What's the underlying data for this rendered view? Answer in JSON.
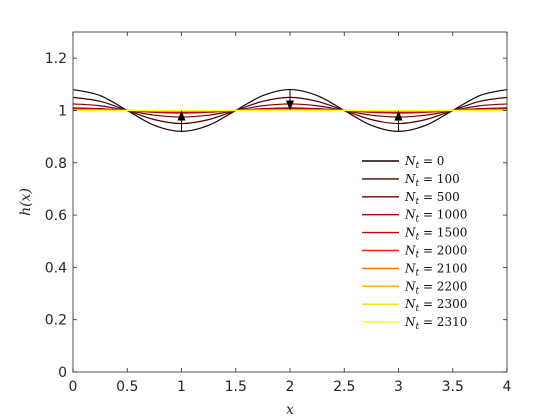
{
  "chart_data": {
    "type": "line",
    "xlabel": "x",
    "ylabel": "h(x)",
    "xlim": [
      0,
      4
    ],
    "ylim": [
      0,
      1.3
    ],
    "xticks": [
      "0",
      "0.5",
      "1",
      "1.5",
      "2",
      "2.5",
      "3",
      "3.5",
      "4"
    ],
    "yticks": [
      "0",
      "0.2",
      "0.4",
      "0.6",
      "0.8",
      "1",
      "1.2"
    ],
    "grid": false,
    "legend_position": "lower-right",
    "x": [
      0,
      0.25,
      0.5,
      0.75,
      1,
      1.25,
      1.5,
      1.75,
      2,
      2.25,
      2.5,
      2.75,
      3,
      3.25,
      3.5,
      3.75,
      4
    ],
    "series": [
      {
        "name": "N_t = 0",
        "label_var": "N",
        "label_sub": "t",
        "label_val": "0",
        "color": "#1a0000",
        "values": [
          1.08,
          1.057,
          1.0,
          0.943,
          0.92,
          0.943,
          1.0,
          1.057,
          1.08,
          1.057,
          1.0,
          0.943,
          0.92,
          0.943,
          1.0,
          1.057,
          1.08
        ]
      },
      {
        "name": "N_t = 100",
        "label_var": "N",
        "label_sub": "t",
        "label_val": "100",
        "color": "#4d0000",
        "values": [
          1.05,
          1.035,
          1.0,
          0.965,
          0.95,
          0.965,
          1.0,
          1.035,
          1.05,
          1.035,
          1.0,
          0.965,
          0.95,
          0.965,
          1.0,
          1.035,
          1.05
        ]
      },
      {
        "name": "N_t = 500",
        "label_var": "N",
        "label_sub": "t",
        "label_val": "500",
        "color": "#7a0000",
        "values": [
          1.025,
          1.018,
          1.0,
          0.982,
          0.975,
          0.982,
          1.0,
          1.018,
          1.025,
          1.018,
          1.0,
          0.982,
          0.975,
          0.982,
          1.0,
          1.018,
          1.025
        ]
      },
      {
        "name": "N_t = 1000",
        "label_var": "N",
        "label_sub": "t",
        "label_val": "1000",
        "color": "#a60000",
        "values": [
          1.01,
          1.007,
          1.0,
          0.993,
          0.99,
          0.993,
          1.0,
          1.007,
          1.01,
          1.007,
          1.0,
          0.993,
          0.99,
          0.993,
          1.0,
          1.007,
          1.01
        ]
      },
      {
        "name": "N_t = 1500",
        "label_var": "N",
        "label_sub": "t",
        "label_val": "1500",
        "color": "#d10000",
        "values": [
          1.006,
          1.004,
          1.0,
          0.996,
          0.994,
          0.996,
          1.0,
          1.004,
          1.006,
          1.004,
          1.0,
          0.996,
          0.994,
          0.996,
          1.0,
          1.004,
          1.006
        ]
      },
      {
        "name": "N_t = 2000",
        "label_var": "N",
        "label_sub": "t",
        "label_val": "2000",
        "color": "#ff1a00",
        "values": [
          1.004,
          1.003,
          1.0,
          0.997,
          0.996,
          0.997,
          1.0,
          1.003,
          1.004,
          1.003,
          1.0,
          0.997,
          0.996,
          0.997,
          1.0,
          1.003,
          1.004
        ]
      },
      {
        "name": "N_t = 2100",
        "label_var": "N",
        "label_sub": "t",
        "label_val": "2100",
        "color": "#ff6a00",
        "values": [
          1.003,
          1.002,
          1.0,
          0.998,
          0.997,
          0.998,
          1.0,
          1.002,
          1.003,
          1.002,
          1.0,
          0.998,
          0.997,
          0.998,
          1.0,
          1.002,
          1.003
        ]
      },
      {
        "name": "N_t = 2200",
        "label_var": "N",
        "label_sub": "t",
        "label_val": "2200",
        "color": "#ffad00",
        "values": [
          1.002,
          1.0015,
          1.0,
          0.9985,
          0.998,
          0.9985,
          1.0,
          1.0015,
          1.002,
          1.0015,
          1.0,
          0.9985,
          0.998,
          0.9985,
          1.0,
          1.0015,
          1.002
        ]
      },
      {
        "name": "N_t = 2300",
        "label_var": "N",
        "label_sub": "t",
        "label_val": "2300",
        "color": "#ffd900",
        "values": [
          1.001,
          1.0007,
          1.0,
          0.9993,
          0.999,
          0.9993,
          1.0,
          1.0007,
          1.001,
          1.0007,
          1.0,
          0.9993,
          0.999,
          0.9993,
          1.0,
          1.0007,
          1.001
        ]
      },
      {
        "name": "N_t = 2310",
        "label_var": "N",
        "label_sub": "t",
        "label_val": "2310",
        "color": "#ffff1a",
        "values": [
          1.0005,
          1.0004,
          1.0,
          0.9996,
          0.9995,
          0.9996,
          1.0,
          1.0004,
          1.0005,
          1.0004,
          1.0,
          0.9996,
          0.9995,
          0.9996,
          1.0,
          1.0004,
          1.0005
        ]
      }
    ],
    "annotations": [
      {
        "type": "arrow",
        "direction": "up",
        "x": 1,
        "y_from": 0.92,
        "y_to": 1.0
      },
      {
        "type": "arrow",
        "direction": "down",
        "x": 2,
        "y_from": 1.08,
        "y_to": 1.0
      },
      {
        "type": "arrow",
        "direction": "up",
        "x": 3,
        "y_from": 0.92,
        "y_to": 1.0
      }
    ]
  }
}
